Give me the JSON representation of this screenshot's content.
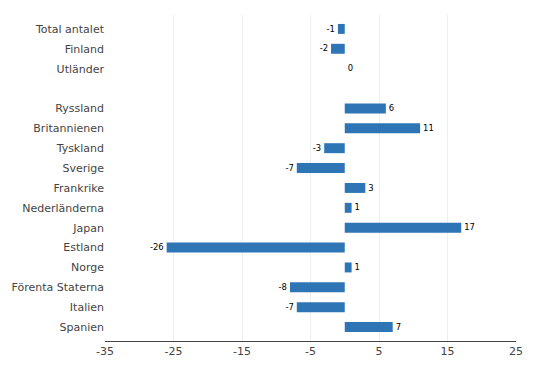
{
  "chart_data": {
    "type": "bar",
    "orientation": "horizontal",
    "categories": [
      "Total antalet",
      "Finland",
      "Utländer",
      null,
      "Ryssland",
      "Britannienen",
      "Tyskland",
      "Sverige",
      "Frankrike",
      "Nederländerna",
      "Japan",
      "Estland",
      "Norge",
      "Förenta Staterna",
      "Italien",
      "Spanien"
    ],
    "values": [
      -1,
      -2,
      0,
      null,
      6,
      11,
      -3,
      -7,
      3,
      1,
      17,
      -26,
      1,
      -8,
      -7,
      7
    ],
    "color": "#2E75B6",
    "xlim": [
      -35,
      25
    ],
    "xticks": [
      -35,
      -25,
      -15,
      -5,
      5,
      15,
      25
    ],
    "grid": true,
    "data_labels": true
  }
}
